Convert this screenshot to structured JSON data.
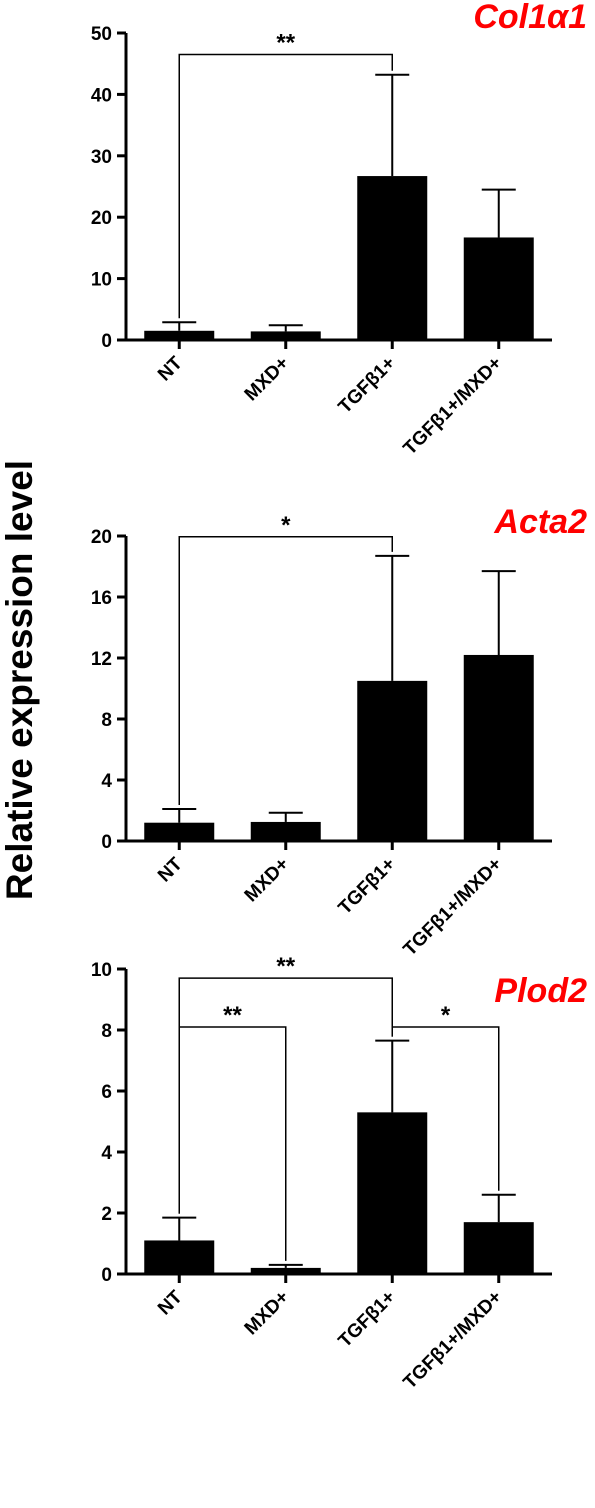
{
  "ylabel": "Relative expression level",
  "colors": {
    "bars": "#000000",
    "title": "#ff0000",
    "text": "#000000"
  },
  "chart_data": [
    {
      "type": "bar",
      "title": "Col1α1",
      "categories": [
        "NT",
        "MXD+",
        "TGFβ1+",
        "TGFβ1+/MXD+"
      ],
      "values": [
        1.5,
        1.4,
        26.7,
        16.7
      ],
      "errors": [
        1.4,
        1.0,
        16.5,
        7.8
      ],
      "ylim": [
        0,
        50
      ],
      "yticks": [
        0,
        10,
        20,
        30,
        40,
        50
      ],
      "significance": [
        {
          "from": 0,
          "to": 2,
          "label": "**",
          "level": 46.5
        }
      ]
    },
    {
      "type": "bar",
      "title": "Acta2",
      "categories": [
        "NT",
        "MXD+",
        "TGFβ1+",
        "TGFβ1+/MXD+"
      ],
      "values": [
        1.2,
        1.25,
        10.5,
        12.2
      ],
      "errors": [
        0.9,
        0.6,
        8.2,
        5.5
      ],
      "ylim": [
        0,
        20
      ],
      "yticks": [
        0,
        4,
        8,
        12,
        16,
        20
      ],
      "significance": [
        {
          "from": 0,
          "to": 2,
          "label": "*",
          "level": 19.95
        }
      ]
    },
    {
      "type": "bar",
      "title": "Plod2",
      "categories": [
        "NT",
        "MXD+",
        "TGFβ1+",
        "TGFβ1+/MXD+"
      ],
      "values": [
        1.1,
        0.2,
        5.3,
        1.7
      ],
      "errors": [
        0.75,
        0.1,
        2.35,
        0.9
      ],
      "ylim": [
        0,
        10
      ],
      "yticks": [
        0,
        2,
        4,
        6,
        8,
        10
      ],
      "significance": [
        {
          "from": 0,
          "to": 2,
          "label": "**",
          "level": 9.7
        },
        {
          "from": 0,
          "to": 1,
          "label": "**",
          "level": 8.1
        },
        {
          "from": 2,
          "to": 3,
          "label": "*",
          "level": 8.1
        }
      ]
    }
  ]
}
